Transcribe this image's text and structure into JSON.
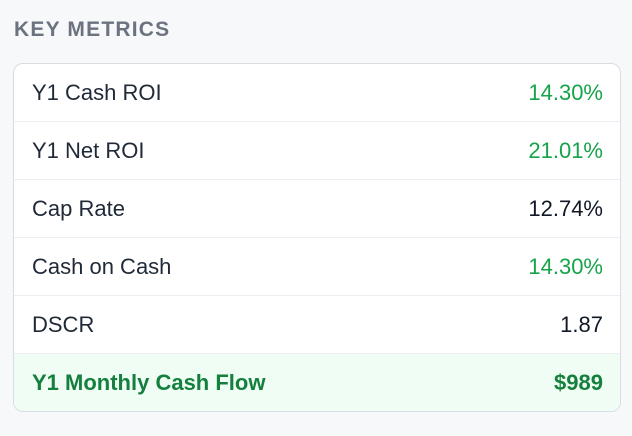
{
  "section": {
    "title": "KEY METRICS"
  },
  "metrics": [
    {
      "label": "Y1 Cash ROI",
      "value": "14.30%",
      "status": "positive"
    },
    {
      "label": "Y1 Net ROI",
      "value": "21.01%",
      "status": "positive"
    },
    {
      "label": "Cap Rate",
      "value": "12.74%",
      "status": "neutral"
    },
    {
      "label": "Cash on Cash",
      "value": "14.30%",
      "status": "positive"
    },
    {
      "label": "DSCR",
      "value": "1.87",
      "status": "neutral"
    },
    {
      "label": "Y1 Monthly Cash Flow",
      "value": "$989",
      "status": "highlight"
    }
  ],
  "colors": {
    "positive": "#16a34a",
    "highlight_text": "#15803d",
    "highlight_bg": "#f0fdf4"
  }
}
